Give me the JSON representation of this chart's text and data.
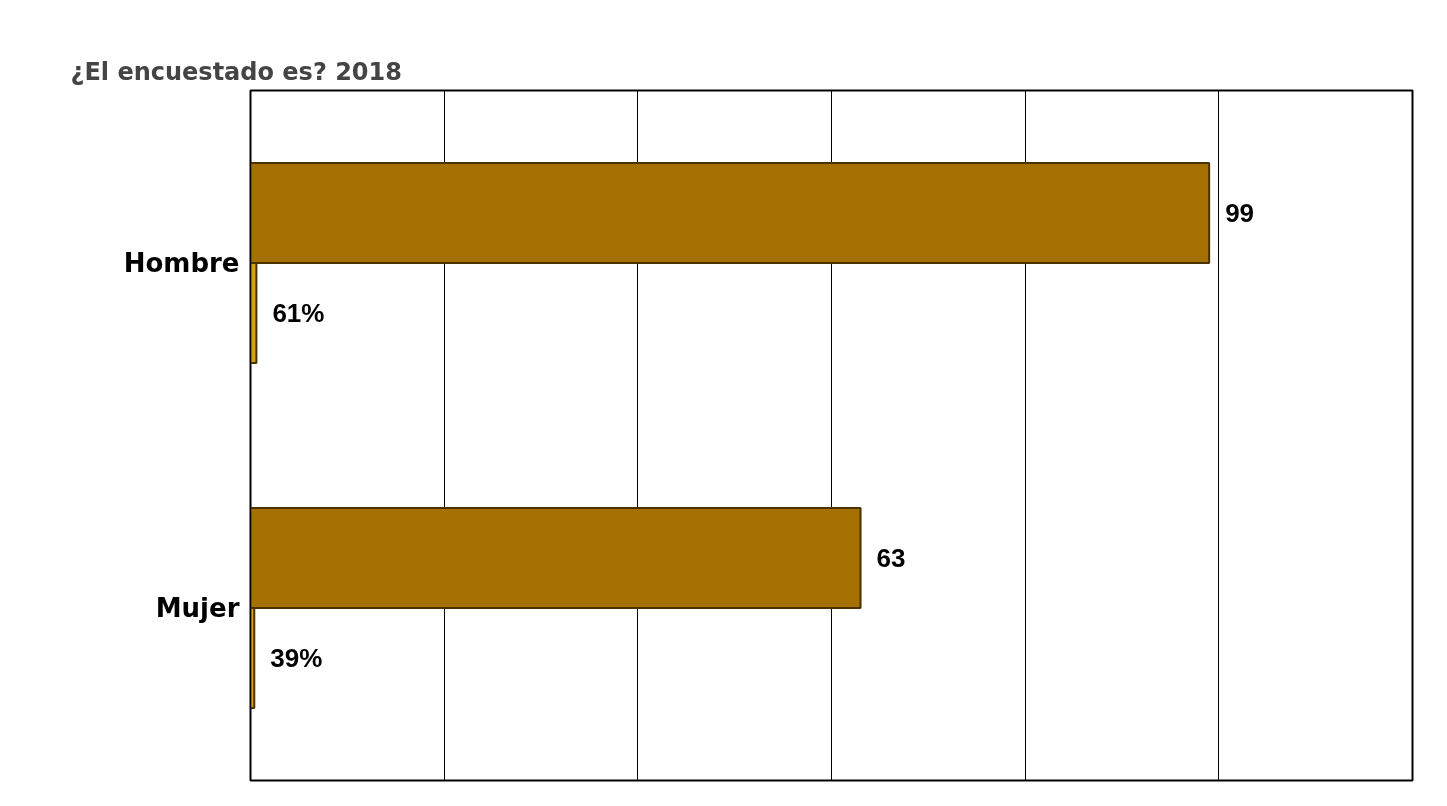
{
  "chart_data": {
    "type": "bar",
    "orientation": "horizontal",
    "title": "¿El encuestado es?  2018",
    "categories": [
      "Hombre",
      "Mujer"
    ],
    "series": [
      {
        "color": "#a67000",
        "values": [
          99,
          63
        ],
        "value_labels": [
          "99",
          "63"
        ]
      },
      {
        "color": "#d4a017",
        "values": [
          0.61,
          0.39
        ],
        "value_labels": [
          "61%",
          "39%"
        ]
      }
    ],
    "xlim": [
      0,
      120
    ],
    "xticks": [
      {
        "value": 0,
        "label": null
      },
      {
        "value": 20,
        "label": null
      },
      {
        "value": 40,
        "label": null
      },
      {
        "value": 60,
        "label": null
      },
      {
        "value": 80,
        "label": null
      },
      {
        "value": 100,
        "label": null
      },
      {
        "value": 120,
        "label": null
      }
    ],
    "grid": "x",
    "tick_labels": "y"
  }
}
